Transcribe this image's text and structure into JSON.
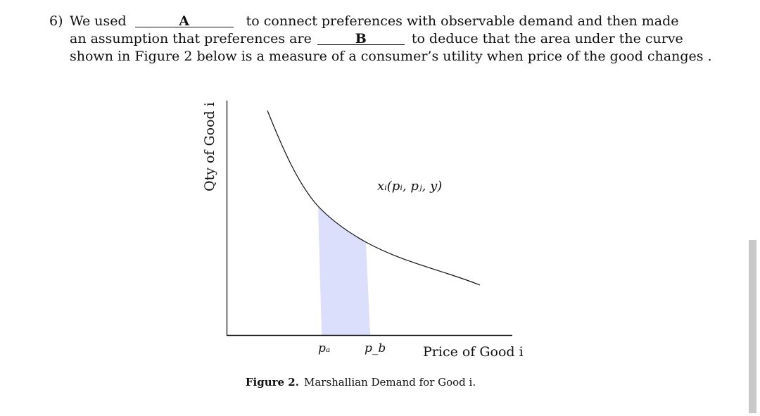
{
  "question": {
    "number": "6)",
    "line1_before": "We used",
    "blank_a": "A",
    "line1_after": "to connect preferences with observable demand and then made",
    "line2_before": "an assumption that preferences are",
    "blank_b": "B",
    "line2_after": "to deduce that the area under the curve",
    "line3": "shown in Figure 2 below is a measure of a consumer’s utility when price of the good changes ."
  },
  "figure": {
    "y_axis_label": "Qty of Good i",
    "x_axis_label": "Price of Good i",
    "curve_label": "xᵢ(pᵢ, pⱼ, y)",
    "tick_pa": "pₐ",
    "tick_pb": "p_b",
    "shade_color": "#dcdffc",
    "caption_label": "Figure 2.",
    "caption_text": "Marshallian Demand for Good i."
  }
}
